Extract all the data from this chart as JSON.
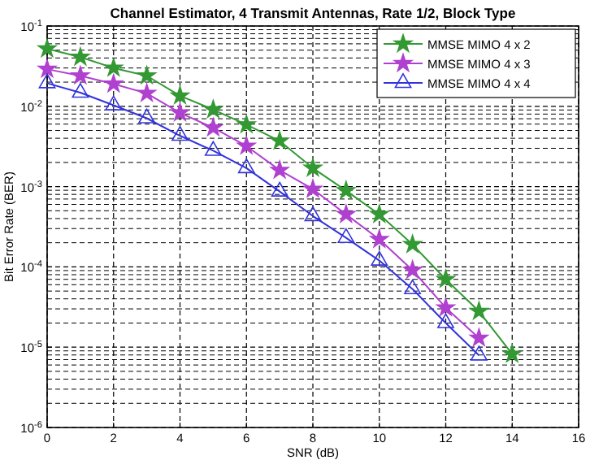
{
  "chart_data": {
    "type": "line",
    "title": "Channel Estimator, 4 Transmit Antennas, Rate 1/2, Block Type",
    "xlabel": "SNR (dB)",
    "ylabel": "Bit Error Rate (BER)",
    "log": "y",
    "grid": true,
    "legend": "top right",
    "line_style": "solid",
    "xlim": [
      0,
      16
    ],
    "xticks": [
      0,
      2,
      4,
      6,
      8,
      10,
      12,
      14,
      16
    ],
    "ylim": [
      1e-06,
      0.1
    ],
    "yticks": [
      {
        "value": 0.1,
        "label": "10$^{-1}$"
      },
      {
        "value": 0.01,
        "label": "10$^{-2}$"
      },
      {
        "value": 0.001,
        "label": "10$^{-3}$"
      },
      {
        "value": 0.0001,
        "label": "10$^{-4}$"
      },
      {
        "value": 1e-05,
        "label": "10$^{-5}$"
      },
      {
        "value": 1e-06,
        "label": "10$^{-6}$"
      }
    ],
    "x": [
      0,
      1,
      2,
      3,
      4,
      5,
      6,
      7,
      8,
      9,
      10,
      11,
      12,
      13,
      14
    ],
    "series": [
      {
        "name": "MMSE MIMO 4 x 2",
        "color": "#339933",
        "marker": "star",
        "values": [
          0.052,
          0.041,
          0.03,
          0.024,
          0.0135,
          0.0091,
          0.0059,
          0.0037,
          0.0017,
          0.00089,
          0.00045,
          0.00019,
          7e-05,
          2.8e-05,
          8.2e-06
        ]
      },
      {
        "name": "MMSE MIMO 4 x 3",
        "color": "#b040d0",
        "marker": "star",
        "values": [
          0.029,
          0.024,
          0.019,
          0.0145,
          0.0083,
          0.0054,
          0.0032,
          0.0016,
          0.00093,
          0.00045,
          0.00022,
          9.1e-05,
          3.1e-05,
          1.3e-05,
          null
        ]
      },
      {
        "name": "MMSE MIMO 4 x 4",
        "color": "#3333dd",
        "marker": "triangle",
        "values": [
          0.0194,
          0.0148,
          0.0103,
          0.0071,
          0.0043,
          0.0028,
          0.0017,
          0.00087,
          0.00043,
          0.00023,
          0.00012,
          5.3e-05,
          2e-05,
          7.9e-06,
          null
        ]
      }
    ]
  }
}
